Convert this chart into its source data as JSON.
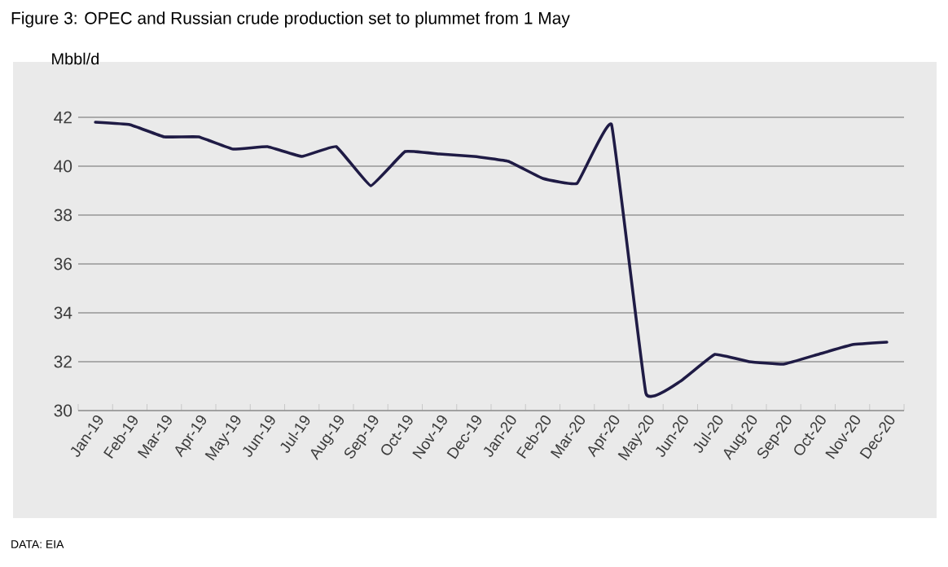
{
  "chart_data": {
    "type": "line",
    "title": "Figure 3: OPEC and Russian crude production set to plummet from 1 May",
    "ylabel": "Mbbl/d",
    "categories": [
      "Jan-19",
      "Feb-19",
      "Mar-19",
      "Apr-19",
      "May-19",
      "Jun-19",
      "Jul-19",
      "Aug-19",
      "Sep-19",
      "Oct-19",
      "Nov-19",
      "Dec-19",
      "Jan-20",
      "Feb-20",
      "Mar-20",
      "Apr-20",
      "May-20",
      "Jun-20",
      "Jul-20",
      "Aug-20",
      "Sep-20",
      "Oct-20",
      "Nov-20",
      "Dec-20"
    ],
    "series": [
      {
        "color": "#1f1b45",
        "values": [
          41.8,
          41.7,
          41.2,
          41.2,
          40.7,
          40.8,
          40.4,
          40.8,
          39.2,
          40.6,
          40.5,
          40.4,
          40.2,
          39.5,
          39.3,
          41.7,
          30.7,
          31.2,
          32.3,
          32.0,
          31.9,
          32.3,
          32.7,
          32.8
        ]
      }
    ],
    "ylim": [
      30,
      42
    ],
    "yticks": [
      30,
      32,
      34,
      36,
      38,
      40,
      42
    ],
    "grid": "y",
    "annotations": [
      "DATA: EIA"
    ]
  }
}
